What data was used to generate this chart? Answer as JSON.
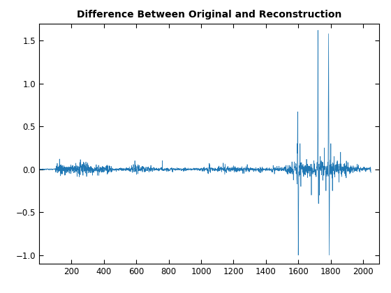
{
  "title": "Difference Between Original and Reconstruction",
  "line_color": "#1f77b4",
  "line_width": 0.5,
  "xlim": [
    0,
    2100
  ],
  "ylim": [
    -1.1,
    1.7
  ],
  "xticks": [
    200,
    400,
    600,
    800,
    1000,
    1200,
    1400,
    1600,
    1800,
    2000
  ],
  "yticks": [
    -1.0,
    -0.5,
    0.0,
    0.5,
    1.0,
    1.5
  ],
  "n_samples": 2048,
  "figsize": [
    5.6,
    4.2
  ],
  "dpi": 100,
  "title_fontsize": 10
}
